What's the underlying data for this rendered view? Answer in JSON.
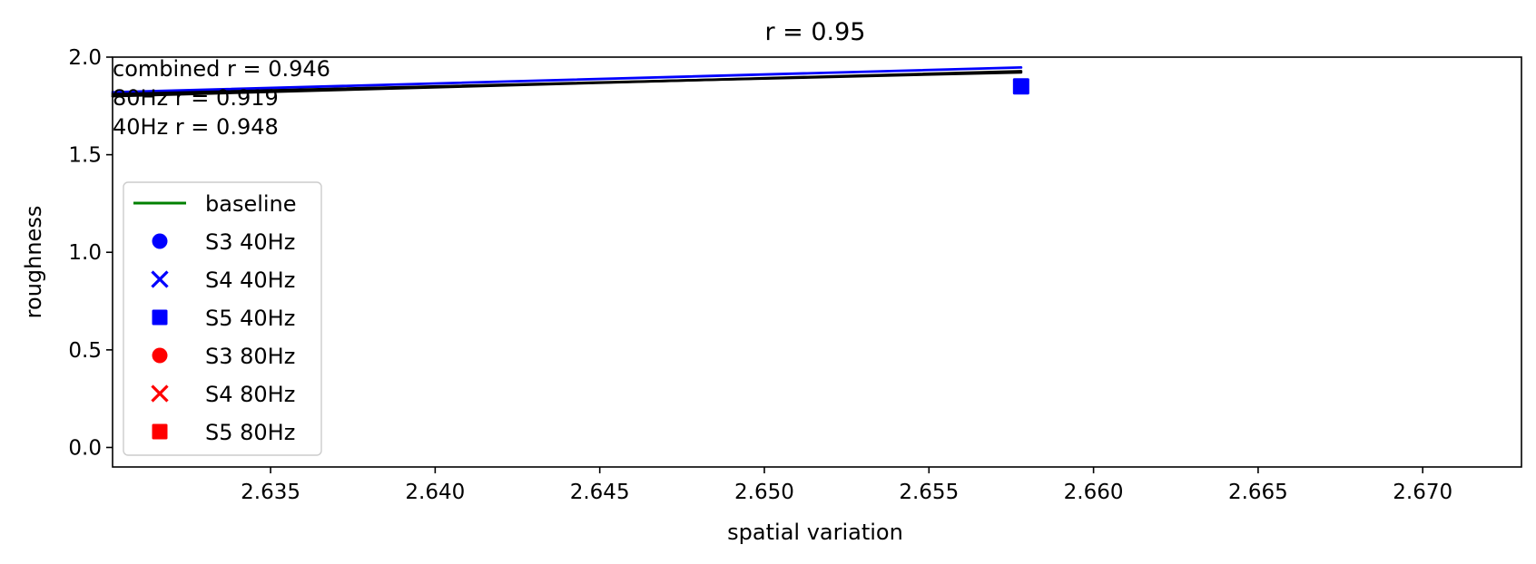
{
  "chart_data": {
    "type": "scatter",
    "title": "r = 0.95",
    "xlabel": "spatial variation",
    "ylabel": "roughness",
    "xlim": [
      2.6302,
      2.673
    ],
    "ylim": [
      -0.1,
      2.0
    ],
    "xticks": [
      {
        "value": 2.635,
        "label": "2.635"
      },
      {
        "value": 2.64,
        "label": "2.640"
      },
      {
        "value": 2.645,
        "label": "2.645"
      },
      {
        "value": 2.65,
        "label": "2.650"
      },
      {
        "value": 2.655,
        "label": "2.655"
      },
      {
        "value": 2.66,
        "label": "2.660"
      },
      {
        "value": 2.665,
        "label": "2.665"
      },
      {
        "value": 2.67,
        "label": "2.670"
      }
    ],
    "yticks": [
      {
        "value": 0.0,
        "label": "0.0"
      },
      {
        "value": 0.5,
        "label": "0.5"
      },
      {
        "value": 1.0,
        "label": "1.0"
      },
      {
        "value": 1.5,
        "label": "1.5"
      },
      {
        "value": 2.0,
        "label": "2.0"
      }
    ],
    "grid": false,
    "legend_position": "center-left",
    "annotations": [
      "combined r = 0.946",
      "80Hz r = 0.919",
      "40Hz r = 0.948"
    ],
    "fit_lines": [
      {
        "color": "#0000ff",
        "x": [
          2.6302,
          2.6578
        ],
        "y": [
          1.82,
          1.947
        ]
      },
      {
        "color": "#000000",
        "x": [
          2.6302,
          2.6578
        ],
        "y": [
          1.8,
          1.928
        ]
      },
      {
        "color": "#000000",
        "x": [
          2.6302,
          2.6578
        ],
        "y": [
          1.81,
          1.922
        ]
      }
    ],
    "series": [
      {
        "name": "baseline",
        "kind": "line",
        "color": "#008000",
        "points": []
      },
      {
        "name": "S3 40Hz",
        "kind": "scatter",
        "marker": "circle",
        "color": "#0000ff",
        "points": []
      },
      {
        "name": "S4 40Hz",
        "kind": "scatter",
        "marker": "x",
        "color": "#0000ff",
        "points": []
      },
      {
        "name": "S5 40Hz",
        "kind": "scatter",
        "marker": "square",
        "color": "#0000ff",
        "points": [
          {
            "x": 2.6578,
            "y": 1.85
          }
        ]
      },
      {
        "name": "S3 80Hz",
        "kind": "scatter",
        "marker": "circle",
        "color": "#ff0000",
        "points": []
      },
      {
        "name": "S4 80Hz",
        "kind": "scatter",
        "marker": "x",
        "color": "#ff0000",
        "points": []
      },
      {
        "name": "S5 80Hz",
        "kind": "scatter",
        "marker": "square",
        "color": "#ff0000",
        "points": []
      }
    ]
  }
}
